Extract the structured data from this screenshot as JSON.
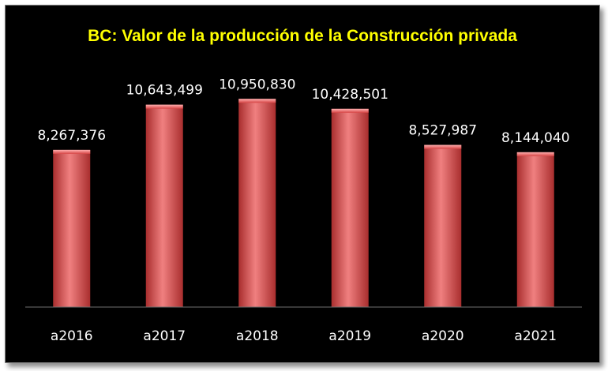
{
  "chart_data": {
    "type": "bar",
    "title": "BC: Valor de la producción de la Construcción privada",
    "categories": [
      "a2016",
      "a2017",
      "a2018",
      "a2019",
      "a2020",
      "a2021"
    ],
    "values": [
      8267376,
      10643499,
      10950830,
      10428501,
      8527987,
      8144040
    ],
    "value_labels": [
      "8,267,376",
      "10,643,499",
      "10,950,830",
      "10,428,501",
      "8,527,987",
      "8,144,040"
    ],
    "ylim": [
      0,
      14200000
    ],
    "grid": false,
    "legend": "none",
    "colors": {
      "background": "#000000",
      "title": "#ffff00",
      "bar": "#d64545",
      "bar_dark": "#a92e2e",
      "bar_light": "#f08080",
      "text": "#ffffff",
      "axis": "#6f6f6f"
    }
  }
}
